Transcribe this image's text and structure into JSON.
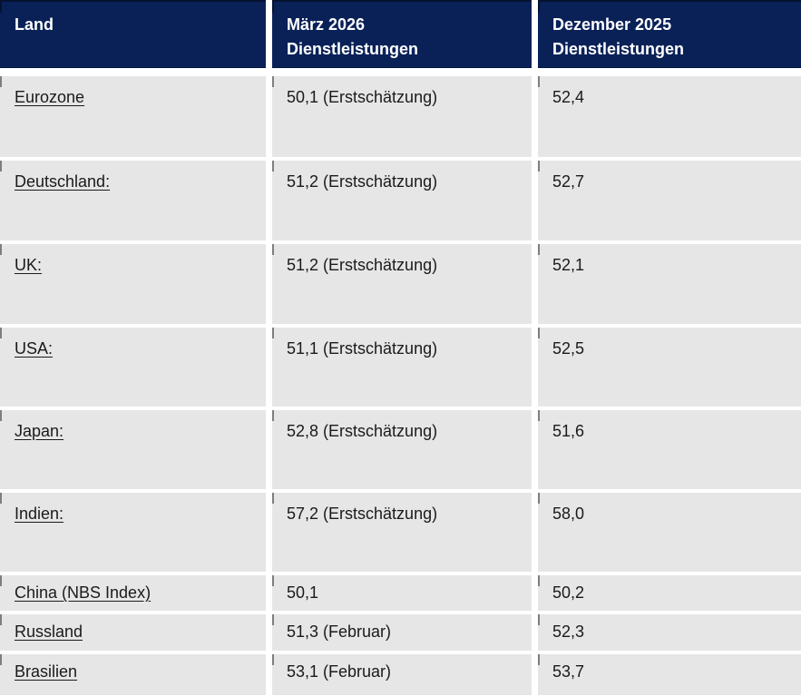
{
  "chart_data": {
    "type": "table",
    "columns": [
      "Land",
      "März 2026 Dienstleistungen",
      "Dezember 2025 Dienstleistungen"
    ],
    "rows": [
      [
        "Eurozone",
        "50,1 (Erstschätzung)",
        "52,4"
      ],
      [
        "Deutschland:",
        "51,2 (Erstschätzung)",
        "52,7"
      ],
      [
        "UK:",
        "51,2 (Erstschätzung)",
        "52,1"
      ],
      [
        "USA:",
        "51,1 (Erstschätzung)",
        "52,5"
      ],
      [
        "Japan:",
        "52,8 (Erstschätzung)",
        "51,6"
      ],
      [
        "Indien:",
        "57,2 (Erstschätzung)",
        "58,0"
      ],
      [
        "China (NBS Index)",
        "50,1",
        "50,2"
      ],
      [
        "Russland",
        "51,3 (Februar)",
        "52,3"
      ],
      [
        "Brasilien",
        "53,1 (Februar)",
        "53,7"
      ]
    ]
  },
  "table": {
    "header": {
      "land": "Land",
      "maerz_line1": "März 2026",
      "maerz_line2": "Dienstleistungen",
      "dezember_line1": "Dezember 2025",
      "dezember_line2": "Dienstleistungen"
    },
    "rows": [
      {
        "land": "Eurozone",
        "maerz": "50,1 (Erstschätzung)",
        "dezember": "52,4"
      },
      {
        "land": "Deutschland:",
        "maerz": "51,2 (Erstschätzung)",
        "dezember": "52,7"
      },
      {
        "land": "UK:",
        "maerz": "51,2 (Erstschätzung)",
        "dezember": "52,1"
      },
      {
        "land": "USA:",
        "maerz": "51,1 (Erstschätzung)",
        "dezember": "52,5"
      },
      {
        "land": "Japan:",
        "maerz": "52,8 (Erstschätzung)",
        "dezember": "51,6"
      },
      {
        "land": "Indien:",
        "maerz": "57,2 (Erstschätzung)",
        "dezember": "58,0"
      },
      {
        "land": "China (NBS Index)",
        "maerz": "50,1",
        "dezember": "50,2"
      },
      {
        "land": "Russland",
        "maerz": "51,3 (Februar)",
        "dezember": "52,3"
      },
      {
        "land": "Brasilien",
        "maerz": "53,1 (Februar)",
        "dezember": "53,7"
      }
    ],
    "colors": {
      "header_bg": "#0a2158",
      "header_text": "#ffffff",
      "cell_bg": "#e6e6e6",
      "body_text": "#1a1a1a"
    }
  }
}
